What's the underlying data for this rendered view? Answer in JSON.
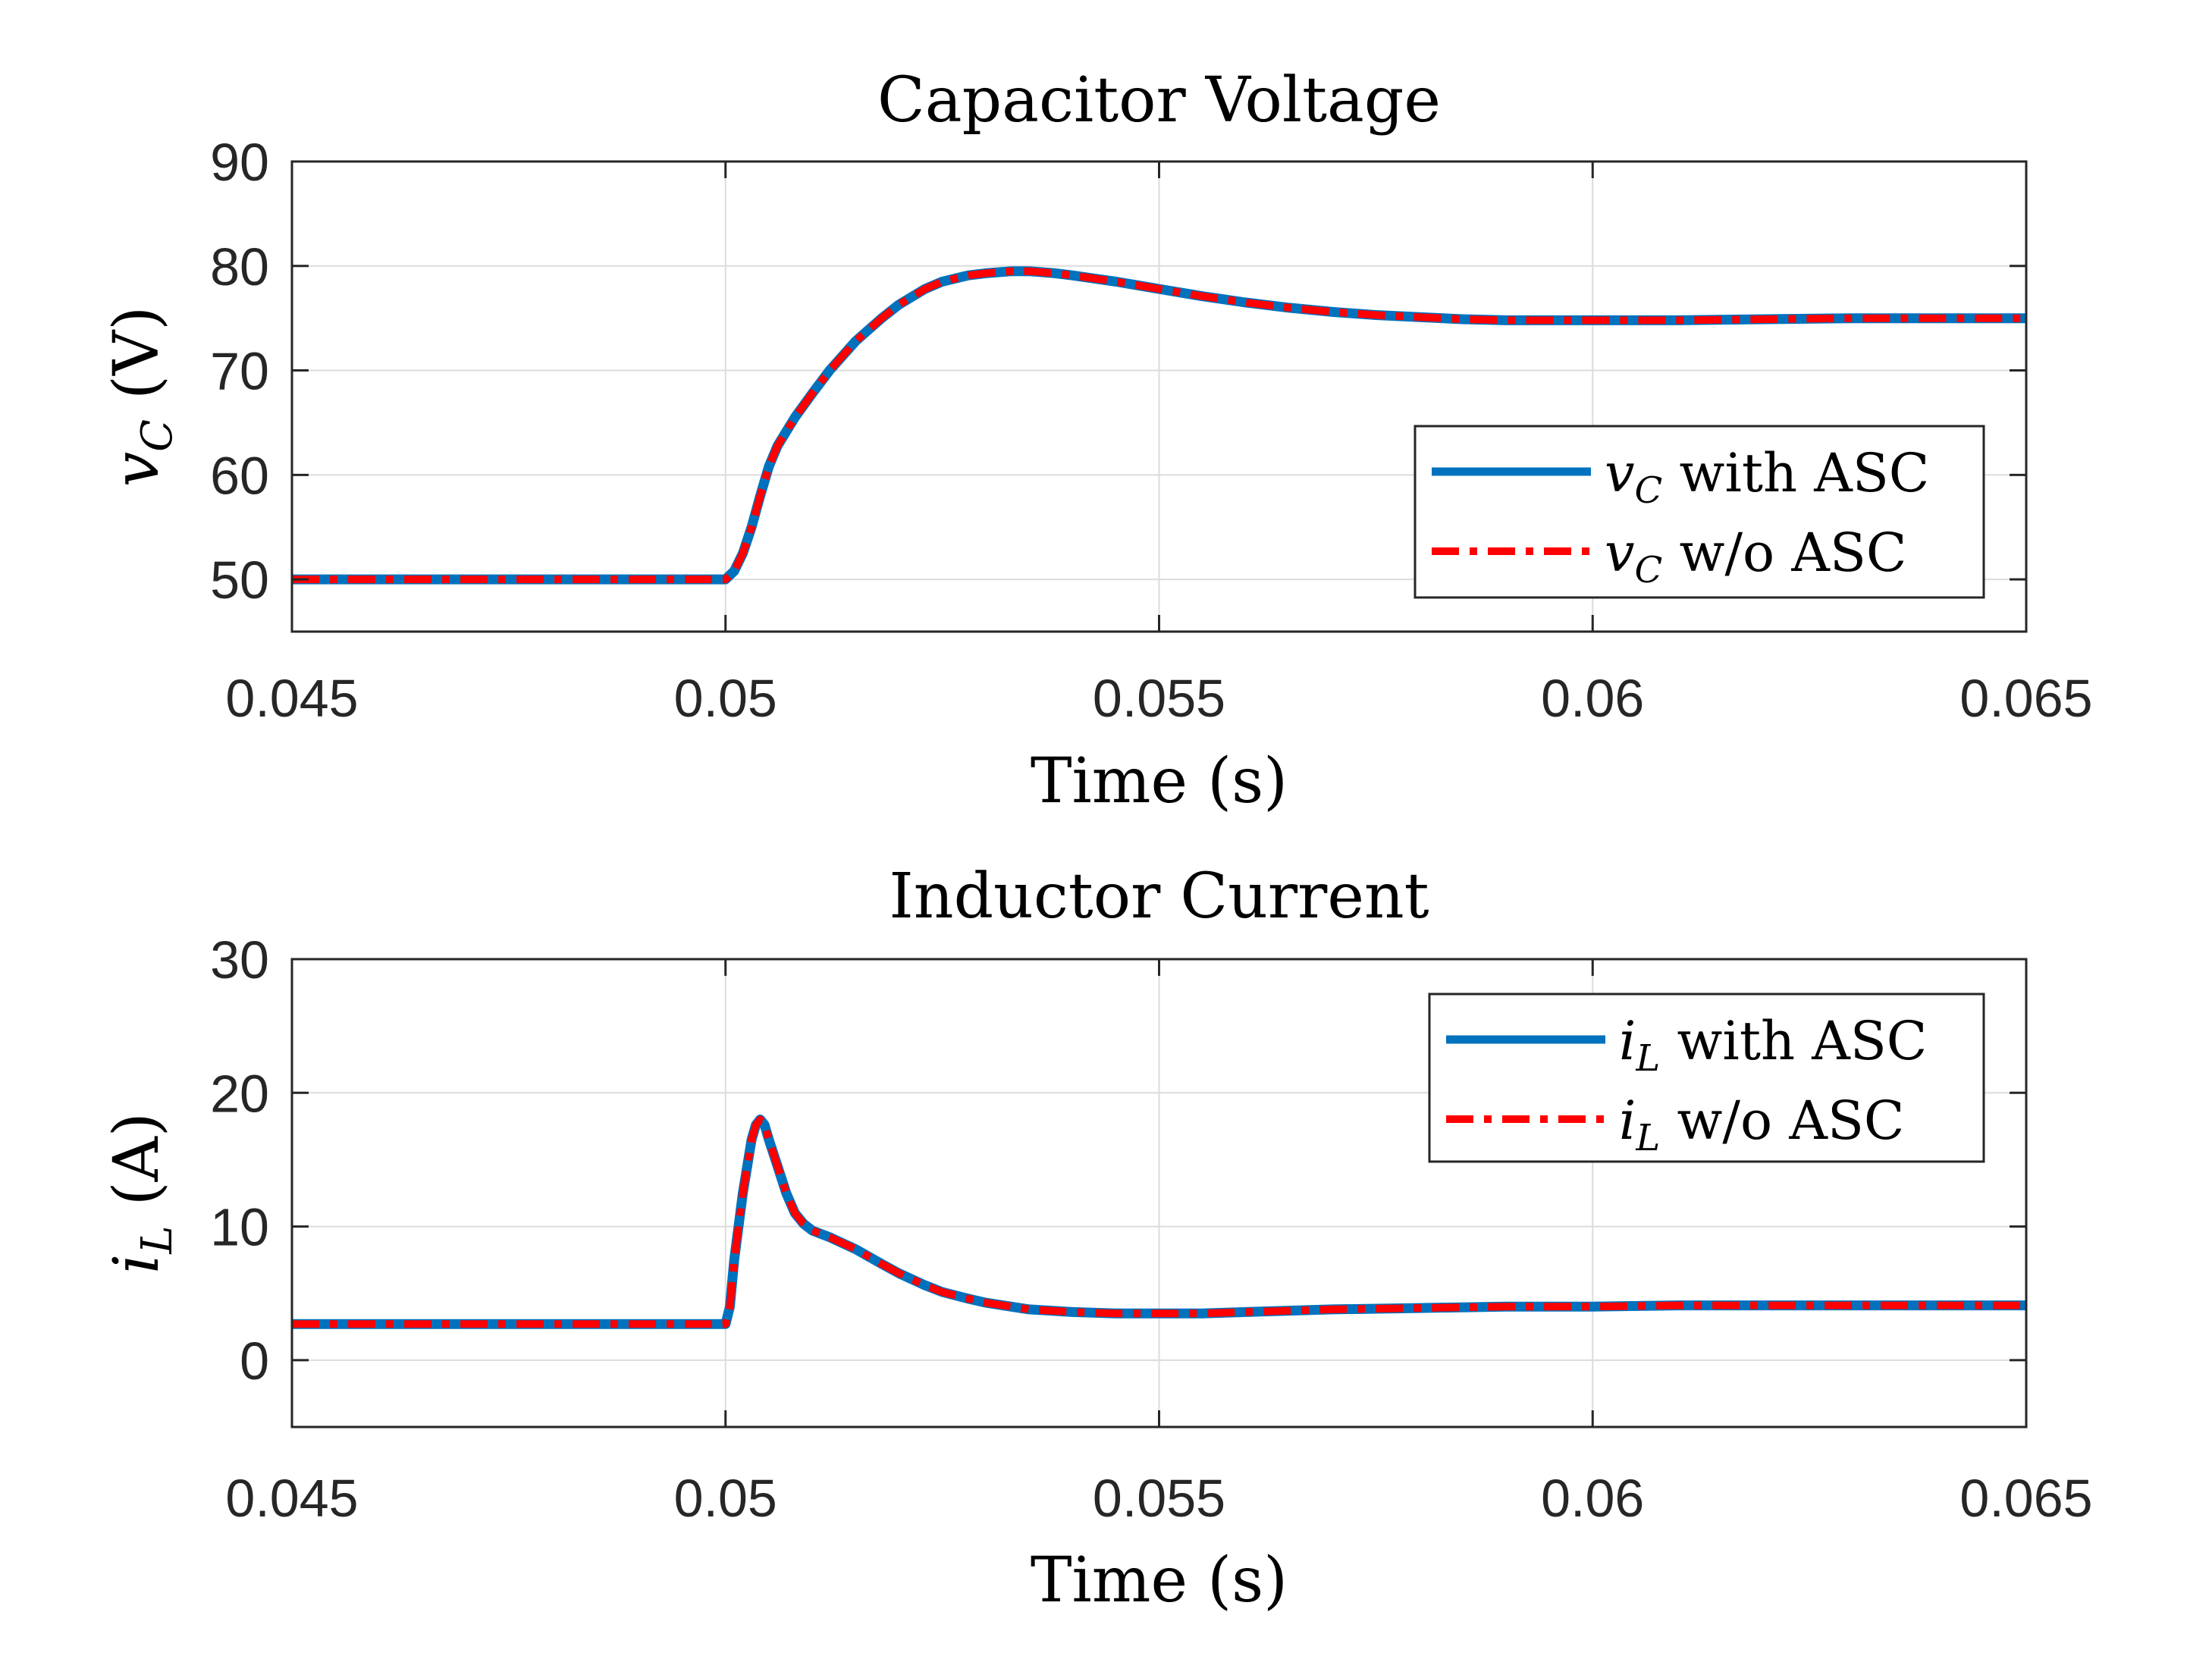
{
  "chart_data": [
    {
      "type": "line",
      "title": "Capacitor Voltage",
      "xlabel": "Time (s)",
      "ylabel": {
        "symbol": "v",
        "sub": "C",
        "unit": "(V)"
      },
      "xlim": [
        0.045,
        0.065
      ],
      "ylim": [
        45,
        90
      ],
      "xticks": [
        0.045,
        0.05,
        0.055,
        0.06,
        0.065
      ],
      "xtick_labels": [
        "0.045",
        "0.05",
        "0.055",
        "0.06",
        "0.065"
      ],
      "yticks": [
        50,
        60,
        70,
        80,
        90
      ],
      "ytick_labels": [
        "50",
        "60",
        "70",
        "80",
        "90"
      ],
      "grid": true,
      "legend_position": "lower-right",
      "series": [
        {
          "name": "with ASC",
          "legend": {
            "symbol": "v",
            "sub": "C",
            "text": "with ASC"
          },
          "color": "#0072BD",
          "style": "solid",
          "x": [
            0.045,
            0.05,
            0.0501,
            0.0502,
            0.0503,
            0.0504,
            0.0505,
            0.0506,
            0.0508,
            0.051,
            0.0512,
            0.0515,
            0.0518,
            0.052,
            0.0523,
            0.0525,
            0.0528,
            0.053,
            0.0533,
            0.0535,
            0.0538,
            0.054,
            0.0545,
            0.055,
            0.0555,
            0.056,
            0.0565,
            0.057,
            0.0575,
            0.058,
            0.0585,
            0.059,
            0.0595,
            0.06,
            0.061,
            0.062,
            0.063,
            0.064,
            0.065
          ],
          "y": [
            50,
            50,
            50.8,
            52.5,
            55,
            58,
            60.8,
            62.8,
            65.5,
            67.8,
            70,
            72.8,
            75,
            76.3,
            77.8,
            78.5,
            79.1,
            79.3,
            79.5,
            79.5,
            79.3,
            79.1,
            78.5,
            77.8,
            77.1,
            76.5,
            76,
            75.6,
            75.3,
            75.1,
            74.9,
            74.8,
            74.8,
            74.8,
            74.8,
            74.9,
            75,
            75,
            75
          ]
        },
        {
          "name": "w/o ASC",
          "legend": {
            "symbol": "v",
            "sub": "C",
            "text": "w/o ASC"
          },
          "color": "#FF0000",
          "style": "dashdot",
          "x": [
            0.045,
            0.05,
            0.0501,
            0.0502,
            0.0503,
            0.0504,
            0.0505,
            0.0506,
            0.0508,
            0.051,
            0.0512,
            0.0515,
            0.0518,
            0.052,
            0.0523,
            0.0525,
            0.0528,
            0.053,
            0.0533,
            0.0535,
            0.0538,
            0.054,
            0.0545,
            0.055,
            0.0555,
            0.056,
            0.0565,
            0.057,
            0.0575,
            0.058,
            0.0585,
            0.059,
            0.0595,
            0.06,
            0.061,
            0.062,
            0.063,
            0.064,
            0.065
          ],
          "y": [
            50,
            50,
            50.8,
            52.5,
            55,
            58,
            60.8,
            62.8,
            65.5,
            67.8,
            70,
            72.8,
            75,
            76.3,
            77.8,
            78.5,
            79.1,
            79.3,
            79.5,
            79.5,
            79.3,
            79.1,
            78.5,
            77.8,
            77.1,
            76.5,
            76,
            75.6,
            75.3,
            75.1,
            74.9,
            74.8,
            74.8,
            74.8,
            74.8,
            74.9,
            75,
            75,
            75
          ]
        }
      ]
    },
    {
      "type": "line",
      "title": "Inductor Current",
      "xlabel": "Time (s)",
      "ylabel": {
        "symbol": "i",
        "sub": "L",
        "unit": "(A)"
      },
      "xlim": [
        0.045,
        0.065
      ],
      "ylim": [
        -5,
        30
      ],
      "xticks": [
        0.045,
        0.05,
        0.055,
        0.06,
        0.065
      ],
      "xtick_labels": [
        "0.045",
        "0.05",
        "0.055",
        "0.06",
        "0.065"
      ],
      "yticks": [
        0,
        10,
        20,
        30
      ],
      "ytick_labels": [
        "0",
        "10",
        "20",
        "30"
      ],
      "grid": true,
      "legend_position": "top-right",
      "series": [
        {
          "name": "with ASC",
          "legend": {
            "symbol": "i",
            "sub": "L",
            "text": "with ASC"
          },
          "color": "#0072BD",
          "style": "solid",
          "x": [
            0.045,
            0.05,
            0.05005,
            0.0501,
            0.0502,
            0.0503,
            0.05035,
            0.0504,
            0.05045,
            0.0505,
            0.0506,
            0.0507,
            0.0508,
            0.0509,
            0.051,
            0.0512,
            0.0515,
            0.0518,
            0.052,
            0.0523,
            0.0525,
            0.0528,
            0.053,
            0.0535,
            0.054,
            0.0545,
            0.055,
            0.0555,
            0.056,
            0.057,
            0.058,
            0.059,
            0.06,
            0.061,
            0.062,
            0.063,
            0.064,
            0.065
          ],
          "y": [
            2.7,
            2.7,
            4,
            7.5,
            12.5,
            16.5,
            17.6,
            18,
            17.6,
            16.5,
            14.5,
            12.5,
            11,
            10.2,
            9.7,
            9.2,
            8.3,
            7.2,
            6.5,
            5.6,
            5.1,
            4.6,
            4.3,
            3.8,
            3.6,
            3.5,
            3.5,
            3.5,
            3.6,
            3.8,
            3.9,
            4,
            4,
            4.1,
            4.1,
            4.1,
            4.1,
            4.1
          ]
        },
        {
          "name": "w/o ASC",
          "legend": {
            "symbol": "i",
            "sub": "L",
            "text": "w/o ASC"
          },
          "color": "#FF0000",
          "style": "dashdot",
          "x": [
            0.045,
            0.05,
            0.05005,
            0.0501,
            0.0502,
            0.0503,
            0.05035,
            0.0504,
            0.05045,
            0.0505,
            0.0506,
            0.0507,
            0.0508,
            0.0509,
            0.051,
            0.0512,
            0.0515,
            0.0518,
            0.052,
            0.0523,
            0.0525,
            0.0528,
            0.053,
            0.0535,
            0.054,
            0.0545,
            0.055,
            0.0555,
            0.056,
            0.057,
            0.058,
            0.059,
            0.06,
            0.061,
            0.062,
            0.063,
            0.064,
            0.065
          ],
          "y": [
            2.7,
            2.7,
            4,
            7.5,
            12.5,
            16.5,
            17.6,
            18,
            17.6,
            16.5,
            14.5,
            12.5,
            11,
            10.2,
            9.7,
            9.2,
            8.3,
            7.2,
            6.5,
            5.6,
            5.1,
            4.6,
            4.3,
            3.8,
            3.6,
            3.5,
            3.5,
            3.5,
            3.6,
            3.8,
            3.9,
            4,
            4,
            4.1,
            4.1,
            4.1,
            4.1,
            4.1
          ]
        }
      ]
    }
  ]
}
